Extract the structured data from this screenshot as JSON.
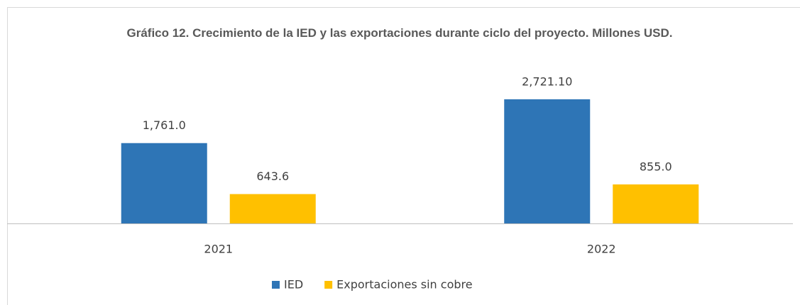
{
  "chart_data": {
    "type": "bar",
    "title": "Gráfico 12. Crecimiento de la IED y las exportaciones durante ciclo del proyecto. Millones USD.",
    "categories": [
      "2021",
      "2022"
    ],
    "series": [
      {
        "name": "IED",
        "color": "#2e75b6",
        "values": [
          1761.0,
          2721.1
        ],
        "value_labels": [
          "1,761.0",
          "2,721.10"
        ]
      },
      {
        "name": "Exportaciones sin cobre",
        "color": "#ffc000",
        "values": [
          643.6,
          855.0
        ],
        "value_labels": [
          "643.6",
          "855.0"
        ]
      }
    ],
    "legend": "bottom"
  }
}
